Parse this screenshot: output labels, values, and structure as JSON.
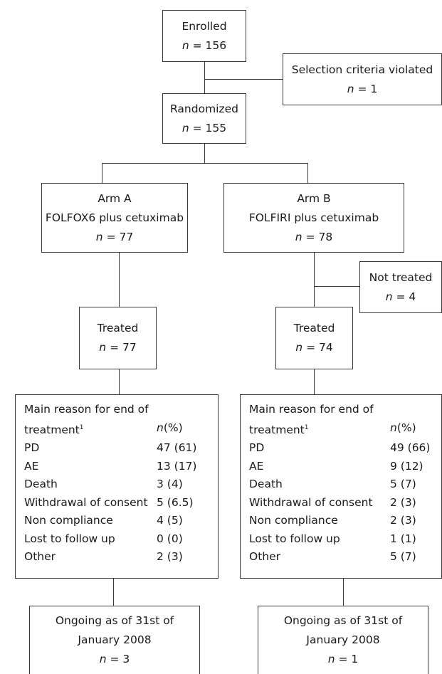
{
  "enrolled": {
    "label": "Enrolled",
    "n": "n",
    "count": "= 156"
  },
  "excluded": {
    "label": "Selection criteria violated",
    "n": "n",
    "count": "= 1"
  },
  "randomized": {
    "label": "Randomized",
    "n": "n",
    "count": "= 155"
  },
  "arm_a": {
    "title": "Arm A",
    "regimen": "FOLFOX6 plus cetuximab",
    "n": "n",
    "count": "= 77"
  },
  "arm_b": {
    "title": "Arm B",
    "regimen": "FOLFIRI plus cetuximab",
    "n": "n",
    "count": "= 78"
  },
  "not_treated": {
    "label": "Not treated",
    "n": "n",
    "count": "= 4"
  },
  "treated_a": {
    "label": "Treated",
    "n": "n",
    "count": "= 77"
  },
  "treated_b": {
    "label": "Treated",
    "n": "n",
    "count": "= 74"
  },
  "reasons_header": {
    "line1": "Main reason for end of",
    "line2": "treatment",
    "footnote": "1",
    "col_n": "n",
    "col_pct": "(%)"
  },
  "reasons_a": [
    {
      "label": "PD",
      "value": "47 (61)"
    },
    {
      "label": "AE",
      "value": "13 (17)"
    },
    {
      "label": "Death",
      "value": "3 (4)"
    },
    {
      "label": "Withdrawal of consent",
      "value": "5 (6.5)"
    },
    {
      "label": "Non compliance",
      "value": "4 (5)"
    },
    {
      "label": "Lost to follow up",
      "value": "0 (0)"
    },
    {
      "label": "Other",
      "value": "2 (3)"
    }
  ],
  "reasons_b": [
    {
      "label": "PD",
      "value": "49 (66)"
    },
    {
      "label": "AE",
      "value": "9 (12)"
    },
    {
      "label": "Death",
      "value": "5 (7)"
    },
    {
      "label": "Withdrawal of consent",
      "value": "2 (3)"
    },
    {
      "label": "Non compliance",
      "value": "2 (3)"
    },
    {
      "label": "Lost to follow up",
      "value": "1 (1)"
    },
    {
      "label": "Other",
      "value": "5 (7)"
    }
  ],
  "ongoing_a": {
    "line1": "Ongoing as of 31st of",
    "line2": "January 2008",
    "n": "n",
    "count": "= 3"
  },
  "ongoing_b": {
    "line1": "Ongoing as of 31st of",
    "line2": "January 2008",
    "n": "n",
    "count": "= 1"
  }
}
